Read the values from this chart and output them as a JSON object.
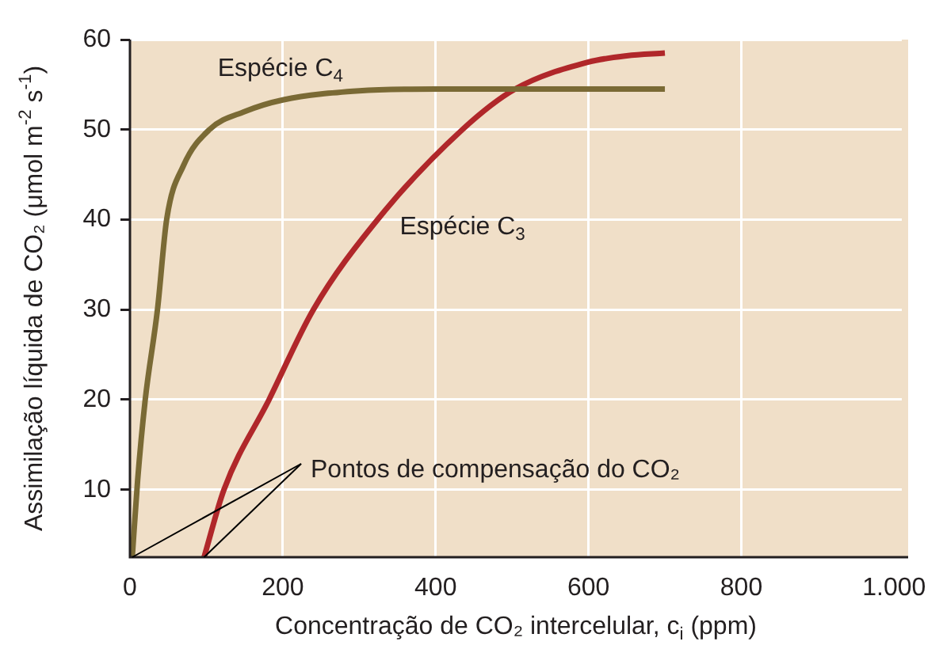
{
  "chart_data": {
    "type": "line",
    "xlabel": "Concentração de CO₂ intercelular, c$_{i}$ (ppm)",
    "ylabel": "Assimilação líquida de CO₂ (μmol m$^{-2}$ s$^{-1}$)",
    "xlim": [
      0,
      1010
    ],
    "xticks": [
      0,
      200,
      400,
      600,
      800,
      {
        "value": 1000,
        "label": "1.000"
      }
    ],
    "ylim": [
      2.5,
      60
    ],
    "yticks": [
      10,
      20,
      30,
      40,
      50,
      60
    ],
    "grid": true,
    "legend": false,
    "marker": "none",
    "line_style": "solid",
    "series": [
      {
        "name": "Espécie C$_{4}$",
        "color": "#7a6a35",
        "x": [
          3,
          10,
          20,
          36,
          48,
          70,
          104,
          150,
          200,
          300,
          400,
          500,
          600,
          700
        ],
        "values": [
          2.5,
          11,
          20,
          30,
          40,
          46,
          50,
          52,
          53.3,
          54.3,
          54.5,
          54.5,
          54.5,
          54.5
        ]
      },
      {
        "name": "Espécie C$_{3}$",
        "color": "#b0272a",
        "x": [
          97,
          123,
          182,
          240,
          324,
          435,
          504,
          600,
          650,
          700
        ],
        "values": [
          2.5,
          10,
          20,
          30,
          40,
          50,
          54.5,
          57.5,
          58.2,
          58.5
        ]
      }
    ],
    "annotations": [
      {
        "text": "Pontos de compensação do CO₂",
        "x": 3,
        "y": 2.5
      }
    ]
  }
}
